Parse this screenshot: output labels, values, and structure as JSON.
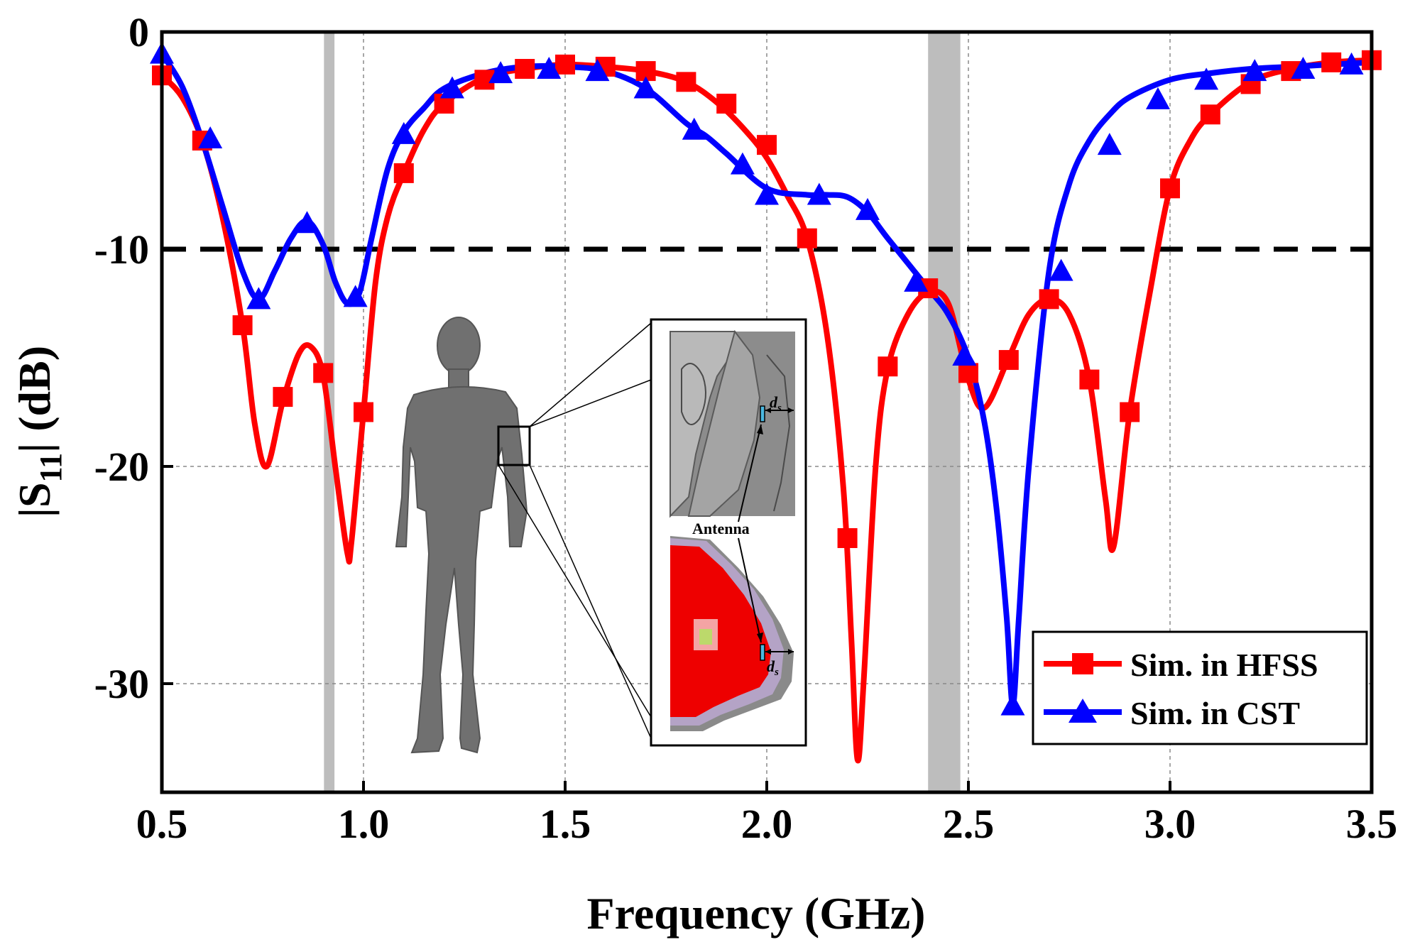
{
  "chart_data": {
    "type": "line",
    "title": "",
    "xlabel": "Frequency (GHz)",
    "ylabel_prefix": "|S",
    "ylabel_sub": "11",
    "ylabel_suffix": "| (dB)",
    "xlim": [
      0.5,
      3.5
    ],
    "ylim": [
      -35,
      0
    ],
    "xticks": [
      0.5,
      1.0,
      1.5,
      2.0,
      2.5,
      3.0,
      3.5
    ],
    "xtick_labels": [
      "0.5",
      "1.0",
      "1.5",
      "2.0",
      "2.5",
      "3.0",
      "3.5"
    ],
    "yticks": [
      0,
      -10,
      -20,
      -30
    ],
    "ytick_labels": [
      "0",
      "-10",
      "-20",
      "-30"
    ],
    "grid": true,
    "threshold_db": -10,
    "shaded_bands": [
      [
        0.902,
        0.928
      ],
      [
        2.4,
        2.48
      ]
    ],
    "legend_position": "bottom-right",
    "series": [
      {
        "name": "Sim. in HFSS",
        "color": "#ff0000",
        "marker": "square",
        "x": [
          0.5,
          0.55,
          0.6,
          0.65,
          0.7,
          0.73,
          0.76,
          0.8,
          0.84,
          0.87,
          0.9,
          0.93,
          0.96,
          0.97,
          1.0,
          1.03,
          1.06,
          1.1,
          1.15,
          1.2,
          1.3,
          1.4,
          1.5,
          1.6,
          1.7,
          1.8,
          1.88,
          1.95,
          2.0,
          2.05,
          2.1,
          2.15,
          2.19,
          2.21,
          2.225,
          2.24,
          2.27,
          2.3,
          2.35,
          2.4,
          2.45,
          2.5,
          2.54,
          2.6,
          2.65,
          2.7,
          2.75,
          2.8,
          2.84,
          2.86,
          2.9,
          2.95,
          3.0,
          3.05,
          3.1,
          3.2,
          3.3,
          3.4,
          3.5
        ],
        "values": [
          -2.0,
          -3.0,
          -5.0,
          -8.5,
          -13.5,
          -18.0,
          -20.0,
          -17.0,
          -14.8,
          -14.5,
          -15.8,
          -20.0,
          -24.0,
          -23.5,
          -17.5,
          -11.5,
          -8.5,
          -6.5,
          -4.5,
          -3.3,
          -2.1,
          -1.7,
          -1.5,
          -1.6,
          -1.8,
          -2.3,
          -3.3,
          -4.6,
          -5.8,
          -7.5,
          -9.5,
          -14.0,
          -21.0,
          -28.0,
          -33.5,
          -30.0,
          -20.0,
          -15.5,
          -13.0,
          -12.0,
          -12.5,
          -16.0,
          -17.3,
          -15.0,
          -13.0,
          -12.3,
          -13.0,
          -16.0,
          -21.5,
          -23.7,
          -17.5,
          -12.0,
          -7.2,
          -5.0,
          -3.8,
          -2.3,
          -1.7,
          -1.4,
          -1.3
        ],
        "marker_x": [
          0.5,
          0.6,
          0.7,
          0.8,
          0.9,
          1.0,
          1.1,
          1.2,
          1.3,
          1.4,
          1.5,
          1.6,
          1.7,
          1.8,
          1.9,
          2.0,
          2.1,
          2.2,
          2.3,
          2.4,
          2.5,
          2.6,
          2.7,
          2.8,
          2.9,
          3.0,
          3.1,
          3.2,
          3.3,
          3.4,
          3.5
        ],
        "marker_values": [
          -2.0,
          -5.0,
          -13.5,
          -16.8,
          -15.7,
          -17.5,
          -6.5,
          -3.3,
          -2.2,
          -1.7,
          -1.5,
          -1.6,
          -1.8,
          -2.3,
          -3.3,
          -5.2,
          -9.5,
          -23.3,
          -15.4,
          -11.8,
          -15.7,
          -15.1,
          -12.3,
          -16.0,
          -17.5,
          -7.2,
          -3.8,
          -2.4,
          -1.8,
          -1.4,
          -1.3
        ]
      },
      {
        "name": "Sim. in CST",
        "color": "#0000ff",
        "marker": "triangle",
        "x": [
          0.5,
          0.55,
          0.6,
          0.65,
          0.7,
          0.74,
          0.78,
          0.82,
          0.86,
          0.9,
          0.93,
          0.96,
          0.99,
          1.02,
          1.06,
          1.1,
          1.15,
          1.2,
          1.3,
          1.4,
          1.5,
          1.6,
          1.7,
          1.8,
          1.85,
          1.9,
          2.0,
          2.1,
          2.15,
          2.2,
          2.25,
          2.3,
          2.4,
          2.45,
          2.5,
          2.54,
          2.57,
          2.595,
          2.61,
          2.625,
          2.65,
          2.7,
          2.75,
          2.8,
          2.85,
          2.9,
          3.0,
          3.1,
          3.2,
          3.3,
          3.4,
          3.5
        ],
        "values": [
          -1.0,
          -2.5,
          -5.0,
          -8.0,
          -11.0,
          -12.3,
          -11.0,
          -9.5,
          -8.7,
          -9.8,
          -11.5,
          -12.5,
          -12.0,
          -9.5,
          -6.3,
          -4.6,
          -3.5,
          -2.6,
          -1.9,
          -1.6,
          -1.6,
          -1.8,
          -2.6,
          -4.2,
          -4.8,
          -5.6,
          -7.2,
          -7.5,
          -7.5,
          -7.6,
          -8.3,
          -9.5,
          -11.8,
          -13.0,
          -15.0,
          -18.0,
          -22.0,
          -27.0,
          -31.0,
          -27.0,
          -20.0,
          -11.0,
          -7.0,
          -5.0,
          -3.8,
          -3.0,
          -2.2,
          -1.9,
          -1.7,
          -1.6,
          -1.5,
          -1.4
        ],
        "marker_x": [
          0.5,
          0.62,
          0.74,
          0.86,
          0.98,
          1.1,
          1.22,
          1.34,
          1.46,
          1.58,
          1.7,
          1.82,
          1.94,
          2.0,
          2.13,
          2.25,
          2.37,
          2.49,
          2.61,
          2.73,
          2.85,
          2.97,
          3.09,
          3.21,
          3.33,
          3.45
        ],
        "marker_values": [
          -1.0,
          -4.9,
          -12.3,
          -8.8,
          -12.2,
          -4.7,
          -2.6,
          -1.9,
          -1.7,
          -1.8,
          -2.6,
          -4.5,
          -6.1,
          -7.5,
          -7.5,
          -8.2,
          -11.5,
          -14.9,
          -31.0,
          -11.0,
          -5.2,
          -3.1,
          -2.2,
          -1.8,
          -1.7,
          -1.5
        ]
      }
    ],
    "inset": {
      "label_antenna": "Antenna",
      "label_ds_d": "d",
      "label_ds_sub": "s",
      "body_model": "human-body-model",
      "upper_panel": "body-section-grey",
      "lower_panel": "body-cross-section-colored"
    }
  }
}
